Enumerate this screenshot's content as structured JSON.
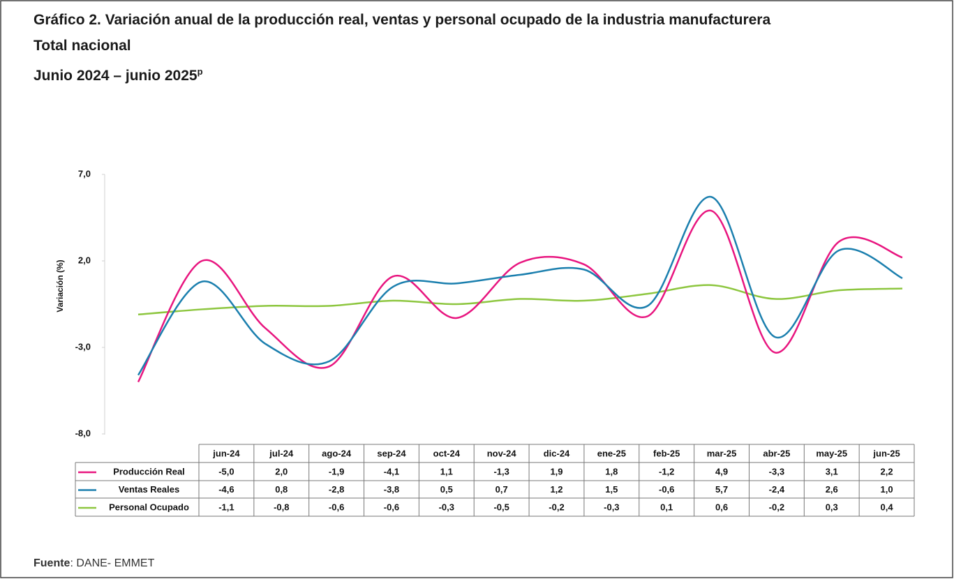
{
  "chart_data": {
    "type": "line",
    "title": "Gráfico 2. Variación anual de la producción real, ventas y personal ocupado de la industria manufacturera",
    "subtitle": "Total nacional",
    "period": "Junio 2024 – junio 2025",
    "period_mark": "p",
    "y_label": "Variación (%)",
    "categories": [
      "jun-24",
      "jul-24",
      "ago-24",
      "sep-24",
      "oct-24",
      "nov-24",
      "dic-24",
      "ene-25",
      "feb-25",
      "mar-25",
      "abr-25",
      "may-25",
      "jun-25"
    ],
    "series": [
      {
        "name": "Producción Real",
        "color": "#e8157f",
        "values": [
          -5.0,
          2.0,
          -1.9,
          -4.1,
          1.1,
          -1.3,
          1.9,
          1.8,
          -1.2,
          4.9,
          -3.3,
          3.1,
          2.2
        ],
        "value_labels": [
          "-5,0",
          "2,0",
          "-1,9",
          "-4,1",
          "1,1",
          "-1,3",
          "1,9",
          "1,8",
          "-1,2",
          "4,9",
          "-3,3",
          "3,1",
          "2,2"
        ]
      },
      {
        "name": "Ventas Reales",
        "color": "#1b7fae",
        "values": [
          -4.6,
          0.8,
          -2.8,
          -3.8,
          0.5,
          0.7,
          1.2,
          1.5,
          -0.6,
          5.7,
          -2.4,
          2.6,
          1.0
        ],
        "value_labels": [
          "-4,6",
          "0,8",
          "-2,8",
          "-3,8",
          "0,5",
          "0,7",
          "1,2",
          "1,5",
          "-0,6",
          "5,7",
          "-2,4",
          "2,6",
          "1,0"
        ]
      },
      {
        "name": "Personal Ocupado",
        "color": "#8dc63f",
        "values": [
          -1.1,
          -0.8,
          -0.6,
          -0.6,
          -0.3,
          -0.5,
          -0.2,
          -0.3,
          0.1,
          0.6,
          -0.2,
          0.3,
          0.4
        ],
        "value_labels": [
          "-1,1",
          "-0,8",
          "-0,6",
          "-0,6",
          "-0,3",
          "-0,5",
          "-0,2",
          "-0,3",
          "0,1",
          "0,6",
          "-0,2",
          "0,3",
          "0,4"
        ]
      }
    ],
    "ylim": [
      -8,
      7
    ],
    "yticks": [
      {
        "value": -8,
        "label": "-8,0"
      },
      {
        "value": -3,
        "label": "-3,0"
      },
      {
        "value": 2,
        "label": "2,0"
      },
      {
        "value": 7,
        "label": "7,0"
      }
    ],
    "grid": false,
    "source_label": "Fuente",
    "source": ": DANE- EMMET"
  }
}
